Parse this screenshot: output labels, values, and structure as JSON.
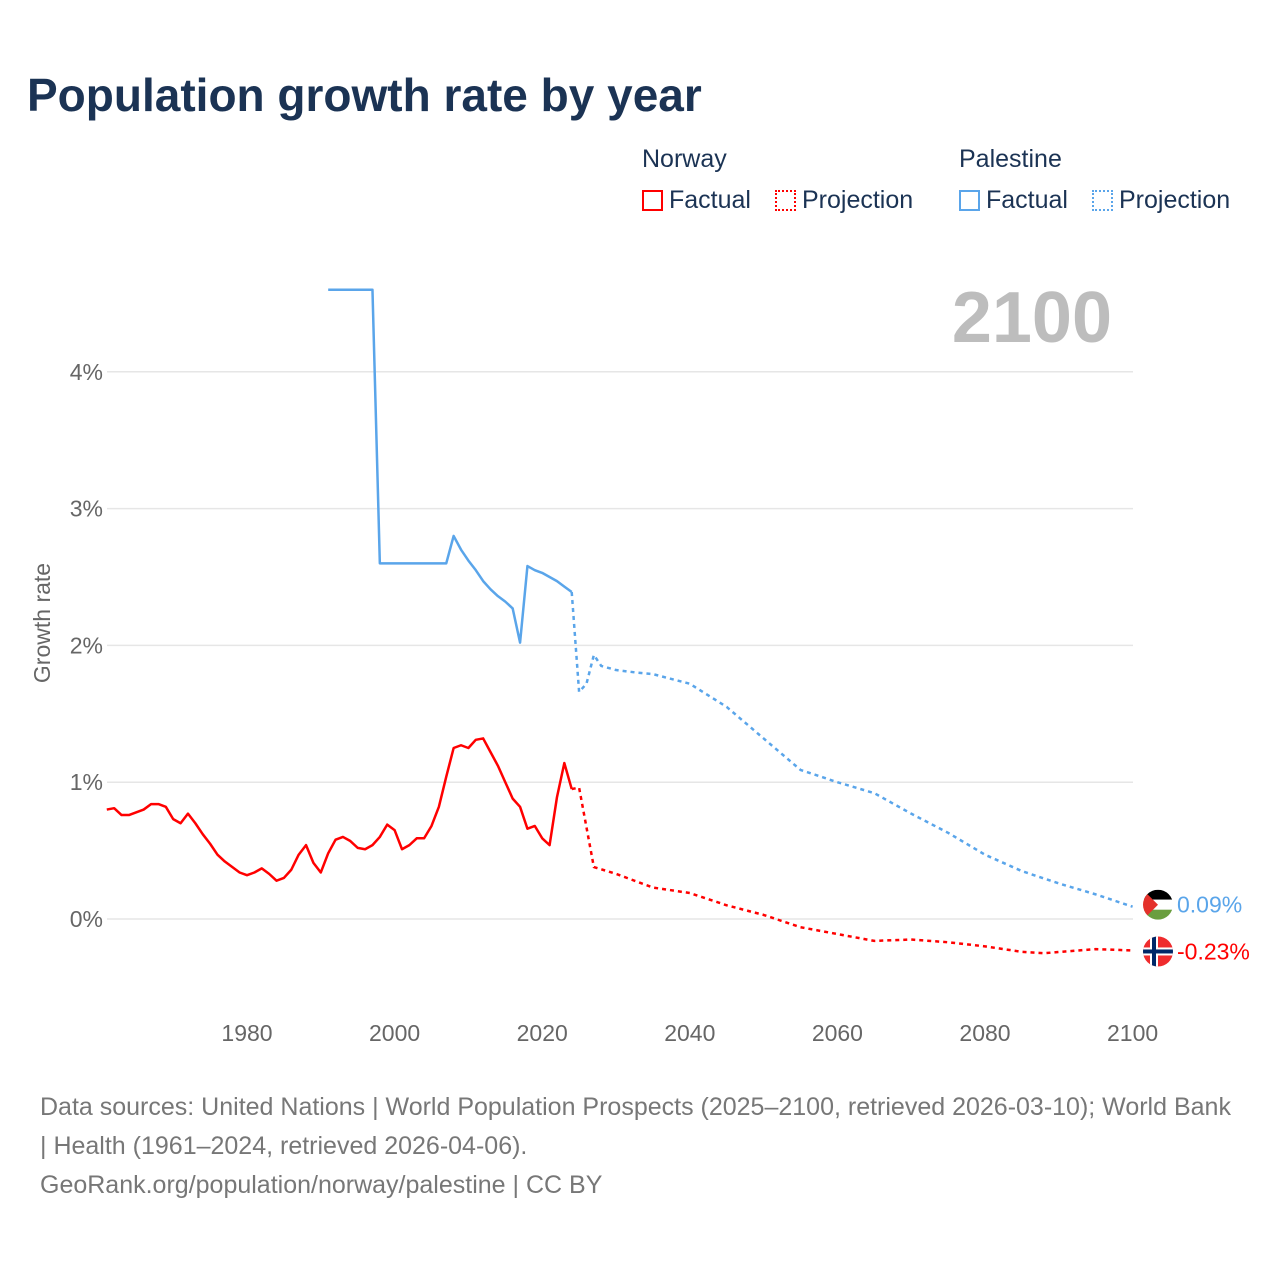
{
  "title": "Population growth rate by year",
  "legend": {
    "groups": [
      {
        "name": "Norway",
        "color": "#ff0000",
        "factual": "Factual",
        "projection": "Projection"
      },
      {
        "name": "Palestine",
        "color": "#5aa5ea",
        "factual": "Factual",
        "projection": "Projection"
      }
    ]
  },
  "year_watermark": "2100",
  "footer": {
    "sources": "Data sources: United Nations | World Population Prospects (2025–2100, retrieved 2026-03-10); World Bank | Health (1961–2024, retrieved 2026-04-06).",
    "link": "GeoRank.org/population/norway/palestine | CC BY"
  },
  "chart_data": {
    "type": "line",
    "title": "Population growth rate by year",
    "xlabel": "",
    "ylabel": "Growth rate",
    "xlim": [
      1961,
      2100
    ],
    "ylim": [
      -0.5,
      4.9
    ],
    "xticks": [
      "1980",
      "2000",
      "2020",
      "2040",
      "2060",
      "2080",
      "2100"
    ],
    "yticks": [
      "0%",
      "1%",
      "2%",
      "3%",
      "4%"
    ],
    "series": [
      {
        "name": "Norway Factual",
        "color": "#ff0000",
        "dashed": false,
        "x": [
          1961,
          1962,
          1963,
          1964,
          1965,
          1966,
          1967,
          1968,
          1969,
          1970,
          1971,
          1972,
          1973,
          1974,
          1975,
          1976,
          1977,
          1978,
          1979,
          1980,
          1981,
          1982,
          1983,
          1984,
          1985,
          1986,
          1987,
          1988,
          1989,
          1990,
          1991,
          1992,
          1993,
          1994,
          1995,
          1996,
          1997,
          1998,
          1999,
          2000,
          2001,
          2002,
          2003,
          2004,
          2005,
          2006,
          2007,
          2008,
          2009,
          2010,
          2011,
          2012,
          2013,
          2014,
          2015,
          2016,
          2017,
          2018,
          2019,
          2020,
          2021,
          2022,
          2023,
          2024
        ],
        "y": [
          0.8,
          0.81,
          0.76,
          0.76,
          0.78,
          0.8,
          0.84,
          0.84,
          0.82,
          0.73,
          0.7,
          0.77,
          0.7,
          0.62,
          0.55,
          0.47,
          0.42,
          0.38,
          0.34,
          0.32,
          0.34,
          0.37,
          0.33,
          0.28,
          0.3,
          0.36,
          0.47,
          0.54,
          0.41,
          0.34,
          0.48,
          0.58,
          0.6,
          0.57,
          0.52,
          0.51,
          0.54,
          0.6,
          0.69,
          0.65,
          0.51,
          0.54,
          0.59,
          0.59,
          0.68,
          0.82,
          1.04,
          1.25,
          1.27,
          1.25,
          1.31,
          1.32,
          1.22,
          1.12,
          1.0,
          0.88,
          0.82,
          0.66,
          0.68,
          0.59,
          0.54,
          0.89,
          1.14,
          0.95
        ]
      },
      {
        "name": "Norway Projection",
        "color": "#ff0000",
        "dashed": true,
        "x": [
          2024,
          2025,
          2027,
          2030,
          2035,
          2040,
          2045,
          2050,
          2055,
          2060,
          2065,
          2070,
          2075,
          2080,
          2085,
          2088,
          2095,
          2100
        ],
        "y": [
          0.95,
          0.96,
          0.38,
          0.33,
          0.23,
          0.19,
          0.1,
          0.03,
          -0.06,
          -0.11,
          -0.16,
          -0.15,
          -0.17,
          -0.2,
          -0.24,
          -0.25,
          -0.22,
          -0.23
        ]
      },
      {
        "name": "Palestine Factual",
        "color": "#5aa5ea",
        "dashed": false,
        "x": [
          1991,
          1997,
          1998,
          2007,
          2008,
          2009,
          2010,
          2011,
          2012,
          2013,
          2014,
          2015,
          2016,
          2017,
          2018,
          2019,
          2020,
          2021,
          2022,
          2023,
          2024
        ],
        "y": [
          4.6,
          4.6,
          2.6,
          2.6,
          2.8,
          2.7,
          2.62,
          2.55,
          2.47,
          2.41,
          2.36,
          2.32,
          2.27,
          2.02,
          2.58,
          2.55,
          2.53,
          2.5,
          2.47,
          2.43,
          2.39
        ]
      },
      {
        "name": "Palestine Projection",
        "color": "#5aa5ea",
        "dashed": true,
        "x": [
          2024,
          2025,
          2026,
          2027,
          2028,
          2030,
          2033,
          2035,
          2040,
          2045,
          2050,
          2055,
          2060,
          2065,
          2070,
          2075,
          2080,
          2085,
          2090,
          2095,
          2100
        ],
        "y": [
          2.39,
          1.66,
          1.72,
          1.93,
          1.85,
          1.82,
          1.8,
          1.79,
          1.72,
          1.55,
          1.32,
          1.09,
          1.0,
          0.92,
          0.77,
          0.63,
          0.47,
          0.35,
          0.26,
          0.18,
          0.09
        ]
      }
    ],
    "end_labels": [
      {
        "country": "Palestine",
        "value": "0.09%",
        "color": "#5aa5ea"
      },
      {
        "country": "Norway",
        "value": "-0.23%",
        "color": "#ff0000"
      }
    ]
  }
}
